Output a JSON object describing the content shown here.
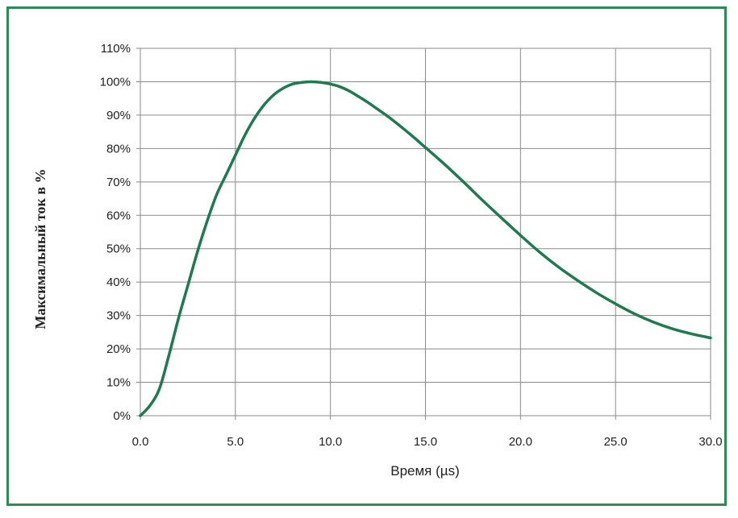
{
  "chart_data": {
    "type": "line",
    "xlabel": "Время (µs)",
    "ylabel": "Максимальный ток в %",
    "xlim": [
      0,
      30
    ],
    "ylim": [
      0,
      110
    ],
    "xticks": [
      "0.0",
      "5.0",
      "10.0",
      "15.0",
      "20.0",
      "25.0",
      "30.0"
    ],
    "yticks": [
      "0%",
      "10%",
      "20%",
      "30%",
      "40%",
      "50%",
      "60%",
      "70%",
      "80%",
      "90%",
      "100%",
      "110%"
    ],
    "grid": true,
    "line_color": "#1f7a50",
    "frame_color": "#2f8a5a",
    "series": [
      {
        "x": [
          0,
          0.5,
          1.0,
          1.5,
          2.0,
          2.5,
          3.0,
          3.5,
          4.0,
          4.5,
          5.0,
          5.5,
          6.0,
          6.5,
          7.0,
          7.5,
          8.0,
          8.5,
          9.0,
          9.5,
          10.0,
          10.5,
          11.0,
          11.5,
          12.0,
          12.5,
          13.0,
          13.5,
          14.0,
          14.5,
          15.0,
          16.0,
          17.0,
          18.0,
          19.0,
          20.0,
          21.0,
          22.0,
          23.0,
          24.0,
          25.0,
          26.0,
          27.0,
          28.0,
          29.0,
          30.0
        ],
        "y": [
          0,
          3,
          8,
          18,
          29,
          39,
          49,
          58,
          66,
          72,
          78,
          84,
          89,
          93,
          96,
          98,
          99.3,
          99.8,
          100,
          99.8,
          99.3,
          98.5,
          97.2,
          95.5,
          93.7,
          91.7,
          89.7,
          87.5,
          85.2,
          82.8,
          80.3,
          75.3,
          70.0,
          64.5,
          59.2,
          54.0,
          49.0,
          44.5,
          40.5,
          36.8,
          33.5,
          30.5,
          28.0,
          26.0,
          24.5,
          23.3
        ]
      }
    ]
  }
}
